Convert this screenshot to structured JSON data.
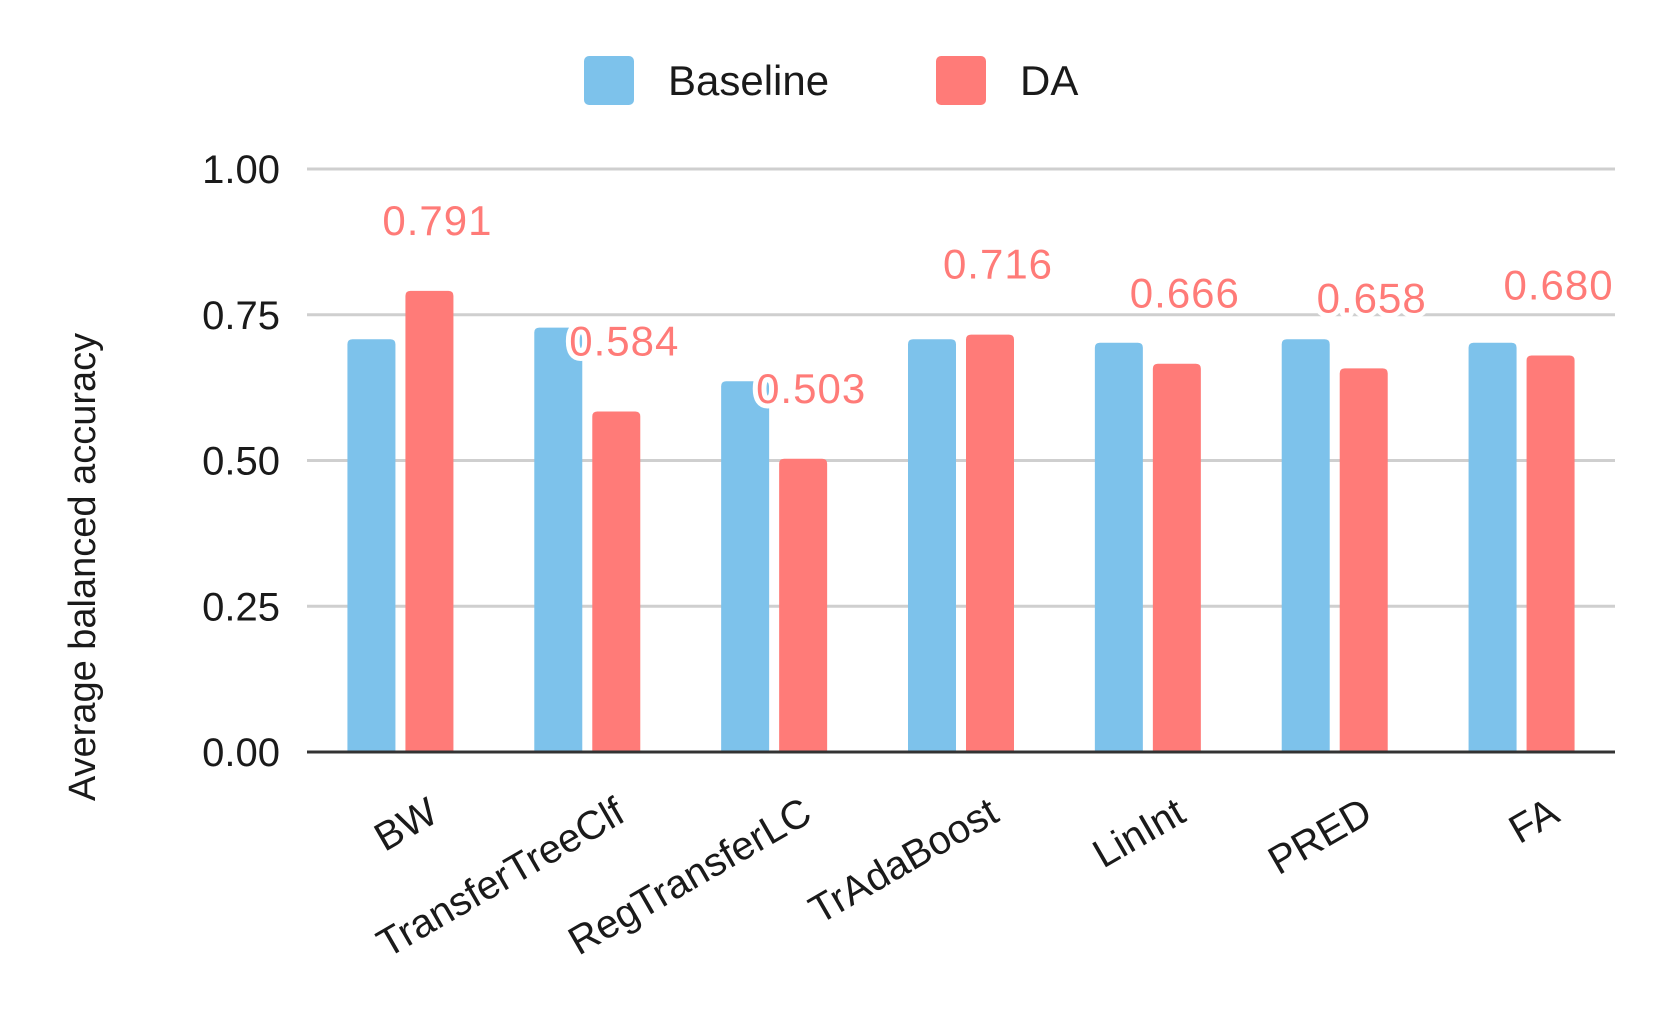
{
  "chart_data": {
    "type": "bar",
    "title": "",
    "xlabel": "",
    "ylabel": "Average balanced accuracy",
    "ylim": [
      0,
      1.0
    ],
    "yticks": [
      "0.00",
      "0.25",
      "0.50",
      "0.75",
      "1.00"
    ],
    "ytick_values": [
      0,
      0.25,
      0.5,
      0.75,
      1.0
    ],
    "grid": true,
    "legend_position": "top-center",
    "categories": [
      "BW",
      "TransferTreeClf",
      "RegTransferLC",
      "TrAdaBoost",
      "LinInt",
      "PRED",
      "FA"
    ],
    "series": [
      {
        "name": "Baseline",
        "color": "#7dc2eb",
        "values": [
          0.708,
          0.728,
          0.636,
          0.708,
          0.702,
          0.708,
          0.702
        ]
      },
      {
        "name": "DA",
        "color": "#ff7b78",
        "values": [
          0.791,
          0.584,
          0.503,
          0.716,
          0.666,
          0.658,
          0.68
        ],
        "labels": [
          "0.791",
          "0.584",
          "0.503",
          "0.716",
          "0.666",
          "0.658",
          "0.680"
        ]
      }
    ]
  }
}
